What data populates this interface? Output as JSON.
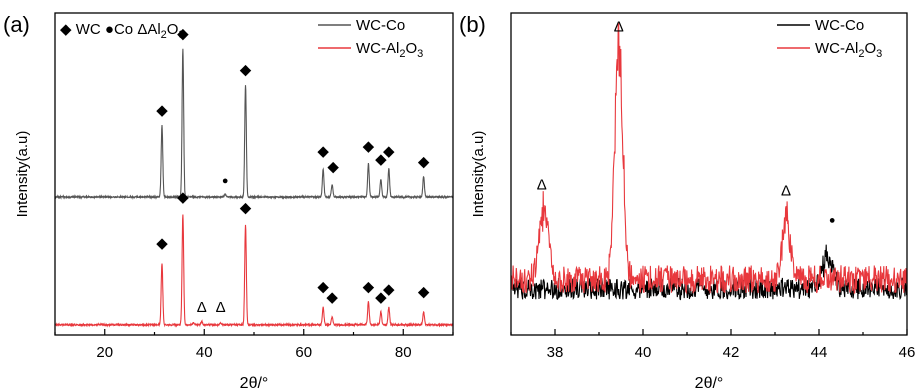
{
  "chart_data": [
    {
      "panel_label": "(a)",
      "type": "line",
      "xlabel": "2θ/°",
      "ylabel": "Intensity(a.u)",
      "xlim": [
        10,
        90
      ],
      "xticks": [
        "20",
        "40",
        "60",
        "80"
      ],
      "marker_legend": {
        "wc_symbol": "◆",
        "wc": "WC",
        "co_symbol": "●",
        "co": "Co",
        "al2o3": "ΔAl",
        "sub2": "2",
        "o": "O",
        "sub3": "3"
      },
      "series": [
        {
          "name": "WC-Co",
          "color": "#555555",
          "baseline": 0.5,
          "peaks": [
            [
              31.5,
              0.28
            ],
            [
              35.7,
              0.58
            ],
            [
              48.3,
              0.44
            ],
            [
              63.9,
              0.11
            ],
            [
              65.7,
              0.05
            ],
            [
              73.0,
              0.13
            ],
            [
              75.5,
              0.07
            ],
            [
              77.1,
              0.11
            ],
            [
              84.1,
              0.08
            ],
            [
              44.2,
              0.01
            ]
          ]
        },
        {
          "name": "WC-Al2O3",
          "color": "#e8383d",
          "baseline": 0.0,
          "peaks": [
            [
              31.5,
              0.24
            ],
            [
              35.7,
              0.43
            ],
            [
              48.3,
              0.39
            ],
            [
              63.9,
              0.07
            ],
            [
              65.7,
              0.03
            ],
            [
              73.0,
              0.09
            ],
            [
              75.5,
              0.05
            ],
            [
              77.1,
              0.07
            ],
            [
              84.1,
              0.05
            ],
            [
              37.8,
              0.008
            ],
            [
              39.5,
              0.012
            ],
            [
              43.3,
              0.008
            ]
          ]
        }
      ],
      "legend": [
        {
          "label": "WC-Co",
          "color": "#555555"
        },
        {
          "label": "WC-Al",
          "sub": "2",
          "label2": "O",
          "sub2": "3",
          "color": "#e8383d"
        }
      ],
      "annotations": [
        {
          "symbol": "◆",
          "x": 31.5,
          "y": 0.82
        },
        {
          "symbol": "◆",
          "x": 35.7,
          "y": 1.12
        },
        {
          "symbol": "◆",
          "x": 48.3,
          "y": 0.98
        },
        {
          "symbol": "◆",
          "x": 63.9,
          "y": 0.66
        },
        {
          "symbol": "◆",
          "x": 65.9,
          "y": 0.6
        },
        {
          "symbol": "◆",
          "x": 73.0,
          "y": 0.68
        },
        {
          "symbol": "◆",
          "x": 75.5,
          "y": 0.63
        },
        {
          "symbol": "◆",
          "x": 77.1,
          "y": 0.66
        },
        {
          "symbol": "◆",
          "x": 84.1,
          "y": 0.62
        },
        {
          "symbol": "●",
          "x": 44.2,
          "y": 0.55
        },
        {
          "symbol": "◆",
          "x": 31.5,
          "y": 0.3
        },
        {
          "symbol": "◆",
          "x": 35.7,
          "y": 0.48
        },
        {
          "symbol": "◆",
          "x": 48.3,
          "y": 0.44
        },
        {
          "symbol": "Δ",
          "x": 39.5,
          "y": 0.05
        },
        {
          "symbol": "Δ",
          "x": 43.3,
          "y": 0.05
        },
        {
          "symbol": "◆",
          "x": 63.9,
          "y": 0.13
        },
        {
          "symbol": "◆",
          "x": 65.7,
          "y": 0.09
        },
        {
          "symbol": "◆",
          "x": 73.0,
          "y": 0.13
        },
        {
          "symbol": "◆",
          "x": 75.5,
          "y": 0.09
        },
        {
          "symbol": "◆",
          "x": 77.1,
          "y": 0.12
        },
        {
          "symbol": "◆",
          "x": 84.1,
          "y": 0.11
        }
      ]
    },
    {
      "panel_label": "(b)",
      "type": "line",
      "xlabel": "2θ/°",
      "ylabel": "Intensity(a.u)",
      "xlim": [
        37,
        46
      ],
      "xticks": [
        "38",
        "40",
        "42",
        "44",
        "46"
      ],
      "series": [
        {
          "name": "WC-Co",
          "color": "#000000",
          "baseline": 0.13,
          "noise": 0.035,
          "peaks": [
            [
              44.2,
              0.11,
              0.12
            ]
          ]
        },
        {
          "name": "WC-Al2O3",
          "color": "#e8383d",
          "baseline": 0.16,
          "noise": 0.045,
          "peaks": [
            [
              37.75,
              0.22,
              0.11
            ],
            [
              39.45,
              0.75,
              0.09
            ],
            [
              43.25,
              0.2,
              0.09
            ]
          ]
        }
      ],
      "legend": [
        {
          "label": "WC-Co",
          "color": "#000000"
        },
        {
          "label": "WC-Al",
          "sub": "2",
          "label2": "O",
          "sub2": "3",
          "color": "#e8383d"
        }
      ],
      "annotations": [
        {
          "symbol": "Δ",
          "x": 37.7,
          "y": 0.45
        },
        {
          "symbol": "Δ",
          "x": 39.45,
          "y": 0.96
        },
        {
          "symbol": "Δ",
          "x": 43.25,
          "y": 0.43
        },
        {
          "symbol": "●",
          "x": 44.3,
          "y": 0.34
        }
      ]
    }
  ]
}
